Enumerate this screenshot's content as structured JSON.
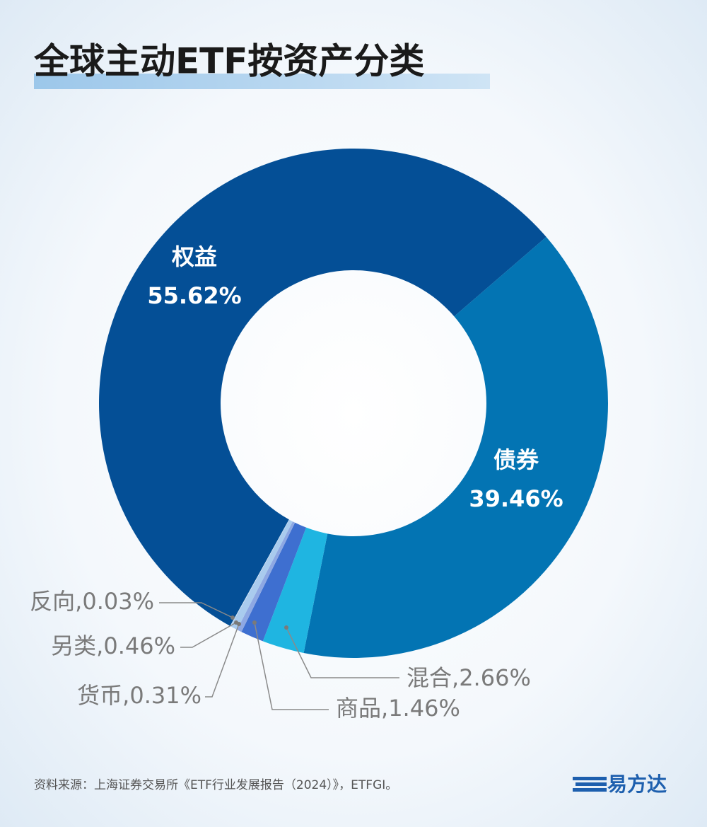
{
  "chart_data": {
    "type": "donut",
    "title": "全球主动ETF按资产分类",
    "categories": [
      "权益",
      "债券",
      "混合",
      "商品",
      "货币",
      "另类",
      "反向"
    ],
    "values": [
      55.62,
      39.46,
      2.66,
      1.46,
      0.31,
      0.46,
      0.03
    ],
    "value_labels": [
      "55.62%",
      "39.46%",
      ",2.66%",
      ",1.46%",
      ",0.31%",
      ",0.46%",
      ",0.03%"
    ],
    "colors": [
      "#044f96",
      "#0374b3",
      "#1fb5e1",
      "#3e6fd0",
      "#8ea8e3",
      "#a9cbee",
      "#d9eaf8"
    ]
  },
  "source": "资料来源：上海证券交易所《ETF行业发展报告（2024）》，ETFGI。",
  "logo": "易方达"
}
